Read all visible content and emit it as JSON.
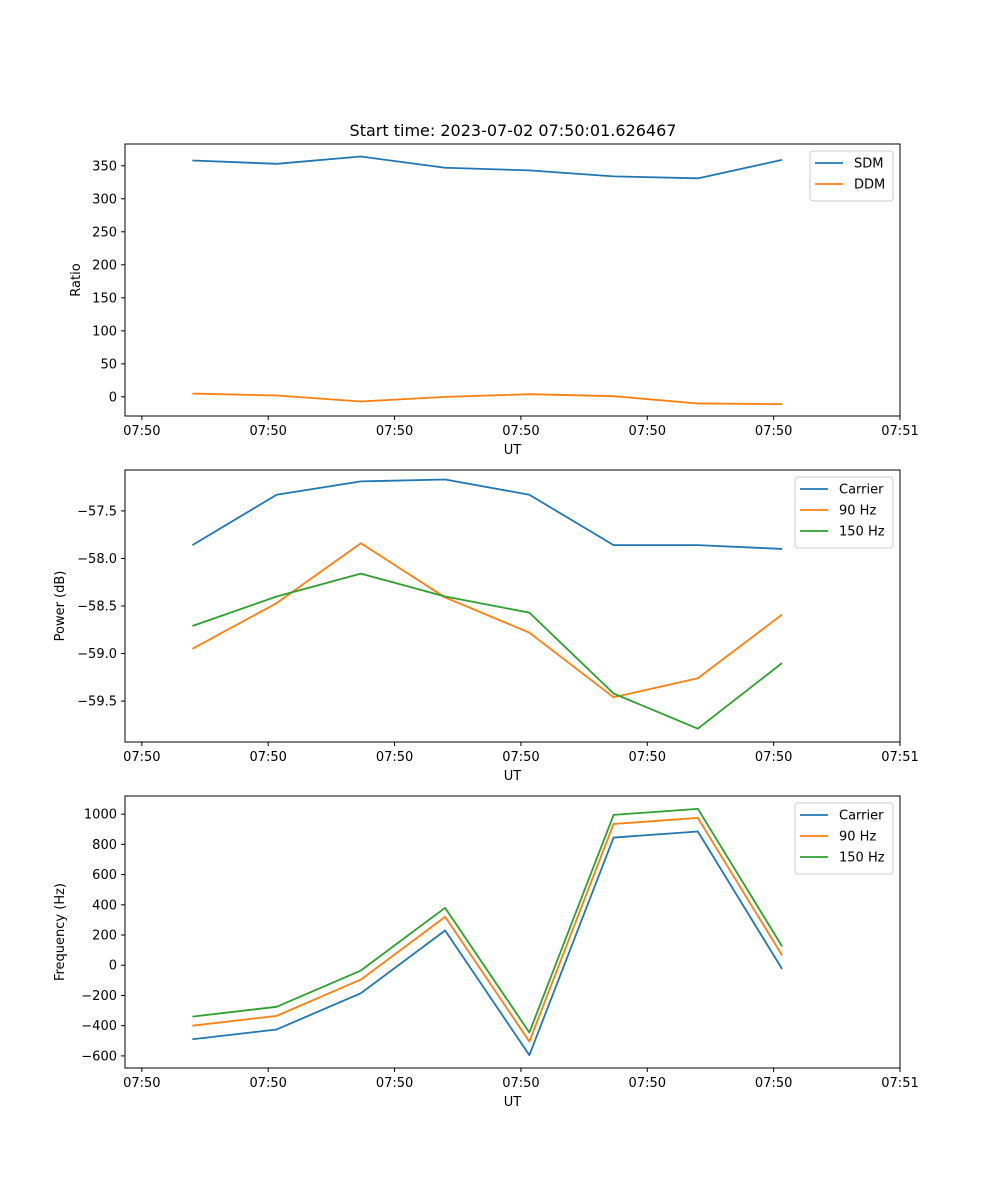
{
  "figure_title": "Start time: 2023-07-02 07:50:01.626467",
  "chart_data": [
    {
      "type": "line",
      "title": "Start time: 2023-07-02 07:50:01.626467",
      "xlabel": "UT",
      "ylabel": "Ratio",
      "x": [
        1.0,
        2.0,
        3.0,
        4.0,
        5.0,
        6.0,
        7.0,
        8.0
      ],
      "xlim": [
        0.2,
        9.4
      ],
      "xticks": [
        0.4,
        1.9,
        3.4,
        4.9,
        6.4,
        7.9,
        9.4
      ],
      "xtick_labels": [
        "07:50",
        "07:50",
        "07:50",
        "07:50",
        "07:50",
        "07:50",
        "07:51"
      ],
      "ylim": [
        -29,
        383
      ],
      "yticks": [
        0,
        50,
        100,
        150,
        200,
        250,
        300,
        350
      ],
      "legend": "top-right",
      "series": [
        {
          "name": "SDM",
          "color": "#1f77b4",
          "values": [
            358,
            353,
            364,
            347,
            343,
            334,
            331,
            359
          ]
        },
        {
          "name": "DDM",
          "color": "#ff7f0e",
          "values": [
            5,
            2,
            -7,
            0,
            4,
            1,
            -10,
            -11
          ]
        }
      ]
    },
    {
      "type": "line",
      "title": "",
      "xlabel": "UT",
      "ylabel": "Power (dB)",
      "x": [
        1.0,
        2.0,
        3.0,
        4.0,
        5.0,
        6.0,
        7.0,
        8.0
      ],
      "xlim": [
        0.2,
        9.4
      ],
      "xticks": [
        0.4,
        1.9,
        3.4,
        4.9,
        6.4,
        7.9,
        9.4
      ],
      "xtick_labels": [
        "07:50",
        "07:50",
        "07:50",
        "07:50",
        "07:50",
        "07:50",
        "07:51"
      ],
      "ylim": [
        -59.93,
        -57.07
      ],
      "yticks": [
        -59.5,
        -59.0,
        -58.5,
        -58.0,
        -57.5
      ],
      "ytick_labels": [
        "−59.5",
        "−59.0",
        "−58.5",
        "−58.0",
        "−57.5"
      ],
      "legend": "top-right",
      "series": [
        {
          "name": "Carrier",
          "color": "#1f77b4",
          "values": [
            -57.86,
            -57.33,
            -57.19,
            -57.17,
            -57.33,
            -57.86,
            -57.86,
            -57.9
          ]
        },
        {
          "name": "90 Hz",
          "color": "#ff7f0e",
          "values": [
            -58.95,
            -58.47,
            -57.84,
            -58.41,
            -58.78,
            -59.46,
            -59.26,
            -58.59
          ]
        },
        {
          "name": "150 Hz",
          "color": "#2ca02c",
          "values": [
            -58.71,
            -58.4,
            -58.16,
            -58.4,
            -58.57,
            -59.42,
            -59.79,
            -59.1
          ]
        }
      ]
    },
    {
      "type": "line",
      "title": "",
      "xlabel": "UT",
      "ylabel": "Frequency (Hz)",
      "x": [
        1.0,
        2.0,
        3.0,
        4.0,
        5.0,
        6.0,
        7.0,
        8.0
      ],
      "xlim": [
        0.2,
        9.4
      ],
      "xticks": [
        0.4,
        1.9,
        3.4,
        4.9,
        6.4,
        7.9,
        9.4
      ],
      "xtick_labels": [
        "07:50",
        "07:50",
        "07:50",
        "07:50",
        "07:50",
        "07:50",
        "07:51"
      ],
      "ylim": [
        -680,
        1120
      ],
      "yticks": [
        -600,
        -400,
        -200,
        0,
        200,
        400,
        600,
        800,
        1000
      ],
      "ytick_labels": [
        "−600",
        "−400",
        "−200",
        "0",
        "200",
        "400",
        "600",
        "800",
        "1000"
      ],
      "legend": "top-right",
      "series": [
        {
          "name": "Carrier",
          "color": "#1f77b4",
          "values": [
            -490,
            -425,
            -185,
            230,
            -595,
            845,
            885,
            -25
          ]
        },
        {
          "name": "90 Hz",
          "color": "#ff7f0e",
          "values": [
            -400,
            -335,
            -95,
            320,
            -505,
            935,
            975,
            65
          ]
        },
        {
          "name": "150 Hz",
          "color": "#2ca02c",
          "values": [
            -340,
            -275,
            -35,
            380,
            -445,
            995,
            1035,
            125
          ]
        }
      ]
    }
  ]
}
